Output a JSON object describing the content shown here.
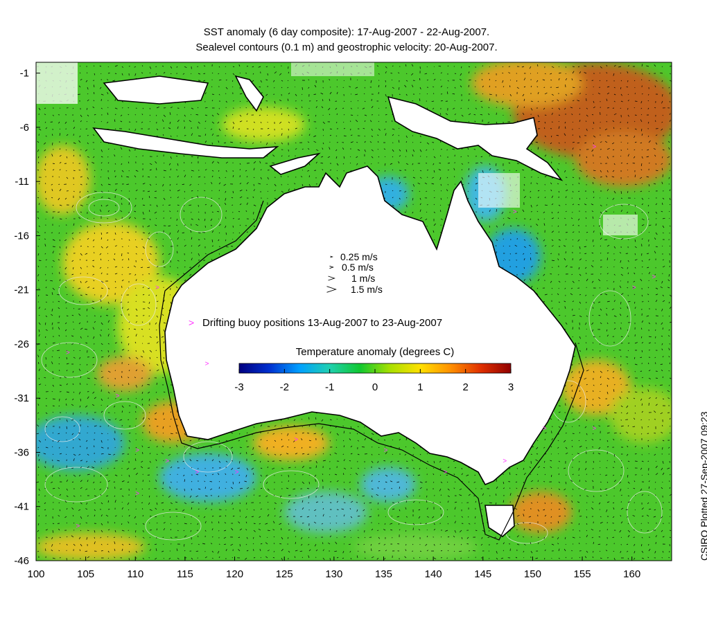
{
  "title_line1": "SST anomaly (6 day composite): 17-Aug-2007 - 22-Aug-2007.",
  "title_line2": "Sealevel contours (0.1 m) and geostrophic velocity: 20-Aug-2007.",
  "credit": "CSIRO Plotted 27-Sep-2007 09:23",
  "x_ticks": [
    "100",
    "105",
    "110",
    "115",
    "120",
    "125",
    "130",
    "135",
    "140",
    "145",
    "150",
    "155",
    "160"
  ],
  "y_ticks": [
    "-1",
    "-6",
    "-11",
    "-16",
    "-21",
    "-26",
    "-31",
    "-36",
    "-41",
    "-46"
  ],
  "velocity_legend": [
    "0.25 m/s",
    "0.5 m/s",
    "1 m/s",
    "1.5 m/s"
  ],
  "buoy_legend": "Drifting buoy positions 13-Aug-2007 to 23-Aug-2007",
  "colorbar": {
    "title": "Temperature anomaly (degrees C)",
    "ticks": [
      "-3",
      "-2",
      "-1",
      "0",
      "1",
      "2",
      "3"
    ],
    "range": [
      -3,
      3
    ],
    "colors": [
      "#000080",
      "#0030d0",
      "#00a0ff",
      "#20d0b0",
      "#10c830",
      "#a8e000",
      "#ffe000",
      "#ff9000",
      "#e03000",
      "#900000"
    ]
  },
  "extent": {
    "lon": [
      100,
      164
    ],
    "lat": [
      -46,
      0
    ]
  },
  "colors": {
    "buoy": "#ff33ff",
    "contour": "#e8e8e8",
    "land": "#ffffff"
  }
}
